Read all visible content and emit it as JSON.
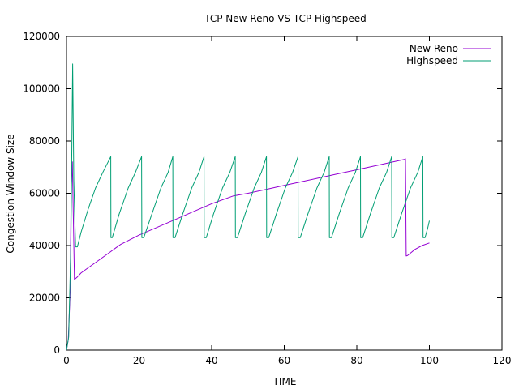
{
  "chart_data": {
    "type": "line",
    "title": "TCP New Reno VS TCP Highspeed",
    "xlabel": "TIME",
    "ylabel": "Congestion Window Size",
    "xlim": [
      0,
      120
    ],
    "ylim": [
      0,
      120000
    ],
    "xticks": [
      0,
      20,
      40,
      60,
      80,
      100,
      120
    ],
    "yticks": [
      0,
      20000,
      40000,
      60000,
      80000,
      100000,
      120000
    ],
    "grid": false,
    "legend_position": "top-right",
    "series": [
      {
        "name": "New Reno",
        "color": "#9400d3",
        "x": [
          0,
          0.5,
          1.0,
          1.3,
          1.6,
          1.9,
          2.2,
          3.0,
          4.0,
          6,
          8,
          10,
          12,
          13.5,
          15,
          20,
          25,
          30,
          35,
          40,
          45,
          46,
          50,
          55,
          60,
          65,
          70,
          75,
          80,
          85,
          90,
          93.2,
          93.4,
          93.6,
          94,
          96,
          98,
          100
        ],
        "y": [
          0,
          4000,
          22000,
          62000,
          72000,
          50000,
          27000,
          28000,
          29500,
          31500,
          33500,
          35500,
          37500,
          39000,
          40500,
          44000,
          47000,
          50000,
          53000,
          56000,
          58500,
          59000,
          60000,
          61500,
          63000,
          64500,
          66000,
          67500,
          69000,
          70500,
          72000,
          73000,
          73200,
          36000,
          36200,
          38500,
          40000,
          41000
        ]
      },
      {
        "name": "Highspeed",
        "color": "#009e73",
        "x": [
          0,
          0.6,
          1.2,
          1.7,
          2.0,
          2.5,
          3.0,
          4,
          6,
          8,
          10,
          12.2,
          12.25,
          12.6,
          14.5,
          17,
          19,
          20.7,
          20.75,
          21.3,
          23.5,
          26,
          28,
          29.3,
          29.35,
          29.9,
          32,
          34.5,
          36.5,
          37.9,
          37.95,
          38.5,
          40.5,
          43,
          45,
          46.5,
          46.55,
          47.1,
          49.2,
          51.7,
          53.7,
          55.1,
          55.15,
          55.7,
          57.8,
          60.3,
          62.3,
          63.8,
          63.85,
          64.4,
          66.5,
          69,
          71,
          72.4,
          72.45,
          73,
          75.1,
          77.6,
          79.6,
          81.0,
          81.05,
          81.6,
          83.7,
          86.2,
          88.2,
          89.6,
          89.65,
          90.2,
          92.3,
          94.8,
          96.8,
          98.2,
          98.25,
          98.8,
          99.5,
          100
        ],
        "y": [
          0,
          5000,
          40000,
          109500,
          65000,
          39500,
          39500,
          45000,
          54000,
          62000,
          68000,
          74000,
          43000,
          43000,
          52000,
          62000,
          68000,
          74000,
          43000,
          43000,
          52000,
          62000,
          68000,
          74000,
          43000,
          43000,
          52000,
          62000,
          68000,
          74000,
          43000,
          43000,
          52000,
          62000,
          68000,
          74000,
          43000,
          43000,
          52000,
          62000,
          68000,
          74000,
          43000,
          43000,
          52000,
          62000,
          68000,
          74000,
          43000,
          43000,
          52000,
          62000,
          68000,
          74000,
          43000,
          43000,
          52000,
          62000,
          68000,
          74000,
          43000,
          43000,
          52000,
          62000,
          68000,
          74000,
          43000,
          43000,
          52000,
          62000,
          68000,
          74000,
          43000,
          43000,
          46500,
          49500
        ]
      }
    ]
  }
}
